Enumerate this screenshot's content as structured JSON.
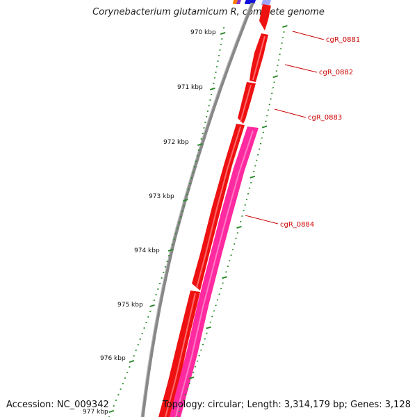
{
  "title": "Corynebacterium glutamicum R, complete genome",
  "footer": {
    "accession": "Accession: NC_009342",
    "summary": "Topology: circular; Length: 3,314,179 bp; Genes: 3,128"
  },
  "ticks": [
    {
      "label": "970 kbp"
    },
    {
      "label": "971 kbp"
    },
    {
      "label": "972 kbp"
    },
    {
      "label": "973 kbp"
    },
    {
      "label": "974 kbp"
    },
    {
      "label": "975 kbp"
    },
    {
      "label": "976 kbp"
    },
    {
      "label": "977 kbp"
    }
  ],
  "genes": [
    {
      "label": "cgR_0881"
    },
    {
      "label": "cgR_0882"
    },
    {
      "label": "cgR_0883"
    },
    {
      "label": "cgR_0884"
    }
  ],
  "colors": {
    "cds_forward": "#ee1111",
    "cds_reverse": "#ff2aa0",
    "backbone": "#808080",
    "tick": "#2a8a2a",
    "label": "#cc0000",
    "blue_feature": "#1010dd"
  }
}
